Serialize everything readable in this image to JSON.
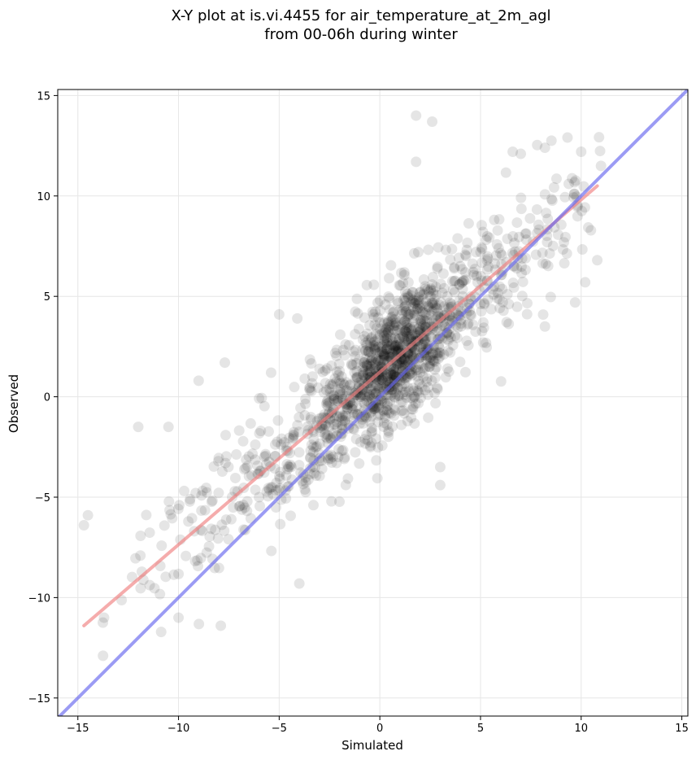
{
  "chart_data": {
    "type": "scatter",
    "title": "X-Y plot at is.vi.4455 for air_temperature_at_2m_agl",
    "subtitle": "from 00-06h during winter",
    "xlabel": "Simulated",
    "ylabel": "Observed",
    "xlim": [
      -16,
      15.3
    ],
    "ylim": [
      -15.9,
      15.3
    ],
    "xticks": [
      -15,
      -10,
      -5,
      0,
      5,
      10,
      15
    ],
    "yticks": [
      -15,
      -10,
      -5,
      0,
      5,
      10,
      15
    ],
    "xtick_labels": [
      "−15",
      "−10",
      "−5",
      "0",
      "5",
      "10",
      "15"
    ],
    "ytick_labels": [
      "−15",
      "−10",
      "−5",
      "0",
      "5",
      "10",
      "15"
    ],
    "grid": true,
    "point_color": "#000000",
    "point_alpha": 0.1,
    "approx_point_count": 1500,
    "point_model": {
      "regression_slope": 0.86,
      "regression_intercept": 1.2,
      "residual_sd": 1.6,
      "x_mean": 0.3,
      "x_sd": 5.3
    },
    "sample_points": [
      [
        1.8,
        14.0
      ],
      [
        2.6,
        13.7
      ],
      [
        1.8,
        11.7
      ],
      [
        6.6,
        12.2
      ],
      [
        7.0,
        12.1
      ],
      [
        8.2,
        12.4
      ],
      [
        10.0,
        12.2
      ],
      [
        -14.7,
        -6.4
      ],
      [
        -14.5,
        -5.9
      ],
      [
        -13.7,
        -11.0
      ],
      [
        -7.9,
        -11.4
      ],
      [
        -4.0,
        -9.3
      ],
      [
        3.0,
        -4.4
      ],
      [
        3.0,
        -3.5
      ],
      [
        10.8,
        6.8
      ],
      [
        10.2,
        5.7
      ],
      [
        8.2,
        3.5
      ],
      [
        9.7,
        4.7
      ],
      [
        -10.0,
        -11.0
      ],
      [
        -12.0,
        -1.5
      ],
      [
        -10.5,
        -1.5
      ],
      [
        -9.0,
        0.8
      ],
      [
        -7.7,
        1.7
      ],
      [
        -5.0,
        4.1
      ],
      [
        -4.1,
        3.9
      ],
      [
        0.2,
        2.0
      ],
      [
        0.8,
        1.0
      ],
      [
        1.5,
        1.5
      ],
      [
        2.5,
        3.0
      ],
      [
        3.2,
        4.5
      ],
      [
        4.0,
        6.5
      ],
      [
        5.0,
        7.2
      ],
      [
        -2.0,
        -1.0
      ],
      [
        -4.5,
        -3.5
      ],
      [
        -6.0,
        -5.0
      ]
    ],
    "series": [
      {
        "name": "",
        "kind": "regression-line",
        "color": "#f08080",
        "x": [
          -14.7,
          10.8
        ],
        "y": [
          -11.4,
          10.5
        ]
      },
      {
        "name": "",
        "kind": "identity-line",
        "color": "#6666ee",
        "x": [
          -16,
          15.3
        ],
        "y": [
          -16,
          15.3
        ]
      }
    ]
  }
}
